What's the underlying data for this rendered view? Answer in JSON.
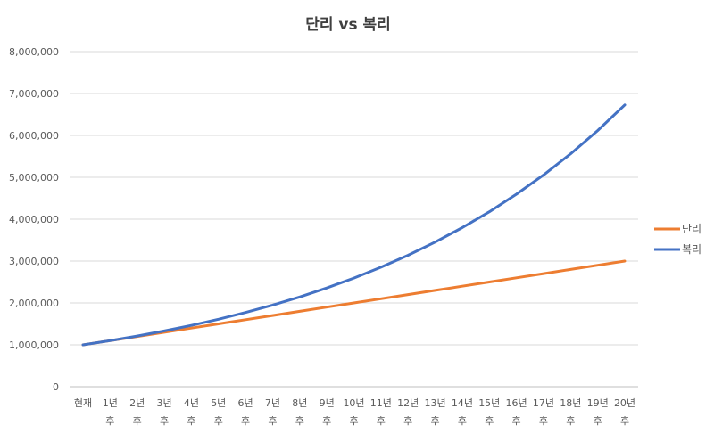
{
  "chart_data": {
    "type": "line",
    "title": "단리 vs 복리",
    "xlabel": "",
    "ylabel": "",
    "ylim": [
      0,
      8000000
    ],
    "y_ticks": [
      0,
      1000000,
      2000000,
      3000000,
      4000000,
      5000000,
      6000000,
      7000000,
      8000000
    ],
    "y_tick_labels": [
      "0",
      "1,000,000",
      "2,000,000",
      "3,000,000",
      "4,000,000",
      "5,000,000",
      "6,000,000",
      "7,000,000",
      "8,000,000"
    ],
    "grid": true,
    "legend_position": "right",
    "categories": [
      [
        "현재",
        ""
      ],
      [
        "1년",
        "후"
      ],
      [
        "2년",
        "후"
      ],
      [
        "3년",
        "후"
      ],
      [
        "4년",
        "후"
      ],
      [
        "5년",
        "후"
      ],
      [
        "6년",
        "후"
      ],
      [
        "7년",
        "후"
      ],
      [
        "8년",
        "후"
      ],
      [
        "9년",
        "후"
      ],
      [
        "10년",
        "후"
      ],
      [
        "11년",
        "후"
      ],
      [
        "12년",
        "후"
      ],
      [
        "13년",
        "후"
      ],
      [
        "14년",
        "후"
      ],
      [
        "15년",
        "후"
      ],
      [
        "16년",
        "후"
      ],
      [
        "17년",
        "후"
      ],
      [
        "18년",
        "후"
      ],
      [
        "19년",
        "후"
      ],
      [
        "20년",
        "후"
      ]
    ],
    "series": [
      {
        "name": "단리",
        "color": "#ED7D31",
        "values": [
          1000000,
          1100000,
          1200000,
          1300000,
          1400000,
          1500000,
          1600000,
          1700000,
          1800000,
          1900000,
          2000000,
          2100000,
          2200000,
          2300000,
          2400000,
          2500000,
          2600000,
          2700000,
          2800000,
          2900000,
          3000000
        ]
      },
      {
        "name": "복리",
        "color": "#4472C4",
        "values": [
          1000000,
          1100000,
          1210000,
          1331000,
          1464100,
          1610510,
          1771561,
          1948717,
          2143589,
          2357948,
          2593742,
          2853117,
          3138428,
          3452271,
          3797498,
          4177248,
          4594973,
          5054470,
          5559917,
          6115909,
          6727500
        ]
      }
    ],
    "grid_color": "#d9d9d9",
    "axis_color": "#bfbfbf"
  }
}
